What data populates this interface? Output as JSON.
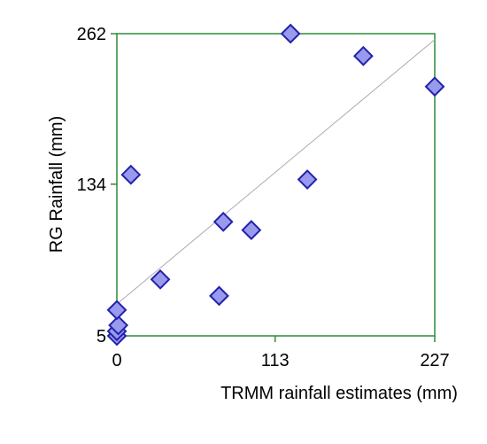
{
  "chart_data": {
    "type": "scatter",
    "title": "",
    "xlabel": "TRMM rainfall estimates (mm)",
    "ylabel": "RG Rainfall (mm)",
    "xlim": [
      0,
      227
    ],
    "ylim": [
      5,
      262
    ],
    "xticks": [
      0,
      113,
      227
    ],
    "yticks": [
      5,
      134,
      262
    ],
    "grid": false,
    "legend": "none",
    "colors": {
      "frame": "#2e8b3a",
      "marker_fill": "#9999ee",
      "marker_stroke": "#2222aa",
      "trend_line": "#aaaaaa"
    },
    "series": [
      {
        "points": [
          {
            "x": 0,
            "y": 5
          },
          {
            "x": 0,
            "y": 9
          },
          {
            "x": 1,
            "y": 14
          },
          {
            "x": 0,
            "y": 27
          },
          {
            "x": 10,
            "y": 142
          },
          {
            "x": 31,
            "y": 53
          },
          {
            "x": 73,
            "y": 39
          },
          {
            "x": 76,
            "y": 102
          },
          {
            "x": 96,
            "y": 95
          },
          {
            "x": 136,
            "y": 138
          },
          {
            "x": 124,
            "y": 262
          },
          {
            "x": 176,
            "y": 243
          },
          {
            "x": 227,
            "y": 217
          }
        ]
      }
    ],
    "trend_line": {
      "x1": 0,
      "y1": 32,
      "x2": 227,
      "y2": 257
    }
  }
}
